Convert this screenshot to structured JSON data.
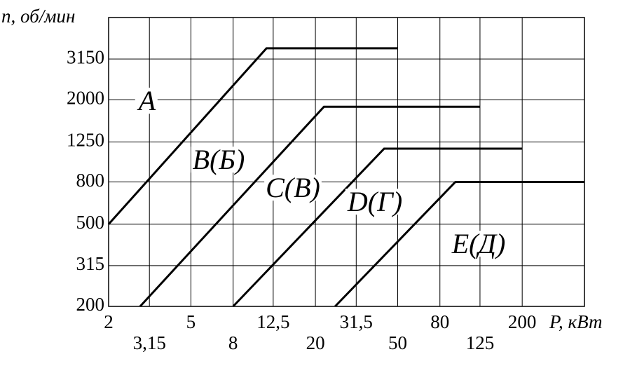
{
  "chart_data": {
    "type": "line",
    "log_x": true,
    "log_y": true,
    "grid": true,
    "y_label": "n, об/мин",
    "x_label": "P, кВт",
    "xlim": [
      2,
      400
    ],
    "ylim": [
      200,
      5000
    ],
    "xticks": [
      2,
      {
        "value": 3.15,
        "label": "3,15"
      },
      5,
      8,
      {
        "value": 12.5,
        "label": "12,5"
      },
      20,
      {
        "value": 31.5,
        "label": "31,5"
      },
      50,
      80,
      125,
      200
    ],
    "yticks": [
      200,
      315,
      500,
      800,
      1250,
      2000,
      3150
    ],
    "series": [
      {
        "color": "#000000",
        "x": [
          2,
          11.6,
          50
        ],
        "values": [
          500,
          3550,
          3550
        ]
      },
      {
        "color": "#000000",
        "x": [
          2.84,
          22,
          125
        ],
        "values": [
          200,
          1850,
          1850
        ]
      },
      {
        "color": "#000000",
        "x": [
          8,
          43,
          200
        ],
        "values": [
          200,
          1160,
          1160
        ]
      },
      {
        "color": "#000000",
        "x": [
          24.9,
          95,
          400
        ],
        "values": [
          200,
          800,
          800
        ]
      }
    ],
    "annotations": [
      "A",
      "B(Б)",
      "C(B)",
      "D(Г)",
      "E(Д)"
    ]
  }
}
